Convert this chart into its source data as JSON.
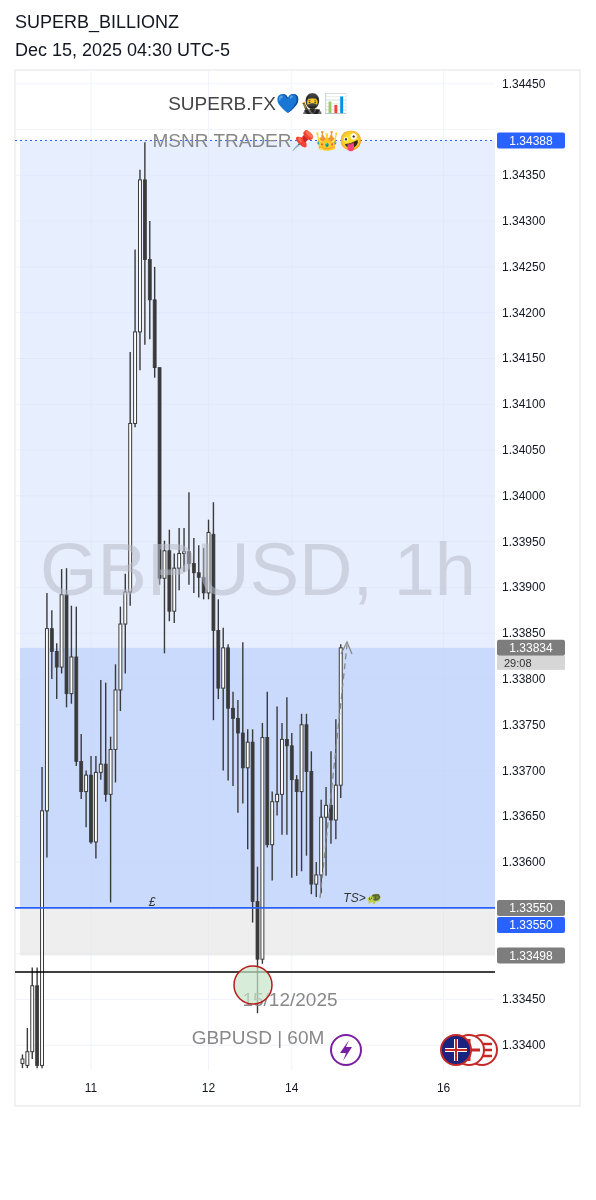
{
  "chart_data": {
    "type": "candlestick",
    "title": "SUPERB_BILLIONZ",
    "subtitle": "Dec 15, 2025 04:30 UTC-5",
    "categories": [
      null,
      null,
      null,
      null,
      null,
      null,
      null,
      null,
      null,
      null,
      null,
      null,
      null,
      null,
      "11",
      null,
      null,
      null,
      null,
      null,
      null,
      null,
      null,
      null,
      null,
      null,
      null,
      null,
      null,
      null,
      null,
      null,
      null,
      null,
      null,
      null,
      null,
      null,
      "12",
      null,
      null,
      null,
      null,
      null,
      null,
      null,
      null,
      null,
      null,
      null,
      null,
      null,
      null,
      null,
      null,
      "14",
      null,
      null,
      null,
      null,
      null,
      null,
      null,
      null,
      null,
      null,
      null,
      null,
      null,
      null,
      null,
      null,
      null,
      null,
      null,
      null,
      null,
      null,
      null,
      null,
      null,
      null,
      null,
      null,
      null,
      null,
      "16",
      null,
      null,
      null,
      null,
      null,
      null,
      null,
      null,
      null,
      null
    ],
    "series": [
      {
        "color": "#3a3a3a",
        "ohlc": [
          [
            1.3338,
            1.3339,
            1.33375,
            1.33385
          ],
          [
            1.33378,
            1.33419,
            1.33375,
            1.33393
          ],
          [
            1.33393,
            1.33485,
            1.33385,
            1.33465
          ],
          [
            1.33465,
            1.33485,
            1.33375,
            1.33378
          ],
          [
            1.33378,
            1.33704,
            1.33375,
            1.33656
          ],
          [
            1.33656,
            1.33894,
            1.33605,
            1.33855
          ],
          [
            1.33855,
            1.33875,
            1.338,
            1.3383
          ],
          [
            1.3383,
            1.33839,
            1.33778,
            1.33813
          ],
          [
            1.33813,
            1.3392,
            1.33806,
            1.33892
          ],
          [
            1.33892,
            1.33921,
            1.33769,
            1.33784
          ],
          [
            1.33784,
            1.3388,
            1.33773,
            1.33824
          ],
          [
            1.33824,
            1.33879,
            1.33705,
            1.3371
          ],
          [
            1.3371,
            1.3374,
            1.33669,
            1.33677
          ],
          [
            1.33677,
            1.337,
            1.33638,
            1.33695
          ],
          [
            1.33695,
            1.33716,
            1.3362,
            1.33622
          ],
          [
            1.33622,
            1.33716,
            1.33604,
            1.33698
          ],
          [
            1.33698,
            1.33799,
            1.3369,
            1.33707
          ],
          [
            1.33707,
            1.33796,
            1.33666,
            1.33674
          ],
          [
            1.33674,
            1.33737,
            1.33556,
            1.33723
          ],
          [
            1.33723,
            1.33816,
            1.33687,
            1.33788
          ],
          [
            1.33788,
            1.33879,
            1.33765,
            1.3386
          ],
          [
            1.3386,
            1.33915,
            1.33806,
            1.33895
          ],
          [
            1.33895,
            1.34157,
            1.3388,
            1.34079
          ],
          [
            1.34079,
            1.34269,
            1.34075,
            1.34179
          ],
          [
            1.34179,
            1.34356,
            1.34137,
            1.34345
          ],
          [
            1.34345,
            1.34386,
            1.34165,
            1.34258
          ],
          [
            1.34258,
            1.343,
            1.34171,
            1.34214
          ],
          [
            1.34214,
            1.3425,
            1.34129,
            1.3414
          ],
          [
            1.3414,
            1.3414,
            1.33903,
            1.3391
          ],
          [
            1.3391,
            1.33951,
            1.33828,
            1.3394
          ],
          [
            1.3394,
            1.33963,
            1.33863,
            1.33874
          ],
          [
            1.33874,
            1.33937,
            1.33861,
            1.33921
          ],
          [
            1.33921,
            1.33965,
            1.33897,
            1.33937
          ],
          [
            1.33937,
            1.33965,
            1.33917,
            1.33939
          ],
          [
            1.33939,
            1.34004,
            1.33903,
            1.33926
          ],
          [
            1.33926,
            1.33954,
            1.33894,
            1.33916
          ],
          [
            1.33916,
            1.33946,
            1.33889,
            1.33911
          ],
          [
            1.33911,
            1.33943,
            1.33887,
            1.33894
          ],
          [
            1.33894,
            1.33974,
            1.33887,
            1.3396
          ],
          [
            1.33958,
            1.33993,
            1.33755,
            1.33853
          ],
          [
            1.33853,
            1.33887,
            1.33778,
            1.3379
          ],
          [
            1.3379,
            1.33856,
            1.337,
            1.33834
          ],
          [
            1.33834,
            1.33838,
            1.33689,
            1.33768
          ],
          [
            1.33768,
            1.33786,
            1.33683,
            1.33757
          ],
          [
            1.33757,
            1.33777,
            1.33654,
            1.33741
          ],
          [
            1.33741,
            1.3384,
            1.33664,
            1.33703
          ],
          [
            1.33703,
            1.33745,
            1.33614,
            1.33731
          ],
          [
            1.33731,
            1.33745,
            1.33534,
            1.33557
          ],
          [
            1.33557,
            1.33595,
            1.33435,
            1.33494
          ],
          [
            1.33494,
            1.33752,
            1.33489,
            1.33736
          ],
          [
            1.33736,
            1.33786,
            1.33616,
            1.33619
          ],
          [
            1.33619,
            1.33677,
            1.3358,
            1.33666
          ],
          [
            1.33666,
            1.3377,
            1.33651,
            1.33674
          ],
          [
            1.33674,
            1.33752,
            1.3363,
            1.33734
          ],
          [
            1.33734,
            1.3378,
            1.3363,
            1.33727
          ],
          [
            1.33727,
            1.33741,
            1.33583,
            1.3369
          ],
          [
            1.3369,
            1.33695,
            1.33585,
            1.33677
          ],
          [
            1.33677,
            1.33762,
            1.3359,
            1.3375
          ],
          [
            1.3375,
            1.33762,
            1.33607,
            1.33699
          ],
          [
            1.33699,
            1.33721,
            1.33565,
            1.33576
          ],
          [
            1.33576,
            1.336,
            1.33562,
            1.33586
          ],
          [
            1.33586,
            1.33668,
            1.33566,
            1.33649
          ],
          [
            1.33649,
            1.33682,
            1.33585,
            1.33662
          ],
          [
            1.33662,
            1.33721,
            1.3362,
            1.33646
          ],
          [
            1.33646,
            1.33756,
            1.33625,
            1.33684
          ],
          [
            1.33684,
            1.33838,
            1.3367,
            1.33834
          ],
          null,
          null,
          null,
          null,
          null,
          null,
          null,
          null,
          null,
          null,
          null,
          null,
          null,
          null,
          null,
          null,
          null,
          null,
          null,
          null,
          null,
          null,
          null,
          null,
          null,
          null,
          null,
          null,
          null,
          null,
          null
        ]
      }
    ],
    "ylim": [
      1.33373,
      1.34465
    ],
    "yticks": [
      {
        "value": 1.334,
        "label": "1.33400"
      },
      {
        "value": 1.3345,
        "label": "1.33450"
      },
      {
        "value": 1.335,
        "label": null
      },
      {
        "value": 1.3355,
        "label": null
      },
      {
        "value": 1.336,
        "label": "1.33600"
      },
      {
        "value": 1.3365,
        "label": "1.33650"
      },
      {
        "value": 1.337,
        "label": "1.33700"
      },
      {
        "value": 1.3375,
        "label": "1.33750"
      },
      {
        "value": 1.338,
        "label": "1.33800"
      },
      {
        "value": 1.3385,
        "label": "1.33850"
      },
      {
        "value": 1.339,
        "label": "1.33900"
      },
      {
        "value": 1.3395,
        "label": "1.33950"
      },
      {
        "value": 1.34,
        "label": "1.34000"
      },
      {
        "value": 1.3405,
        "label": "1.34050"
      },
      {
        "value": 1.341,
        "label": "1.34100"
      },
      {
        "value": 1.3415,
        "label": "1.34150"
      },
      {
        "value": 1.342,
        "label": "1.34200"
      },
      {
        "value": 1.3425,
        "label": "1.34250"
      },
      {
        "value": 1.343,
        "label": "1.34300"
      },
      {
        "value": 1.3435,
        "label": "1.34350"
      },
      {
        "value": 1.344,
        "label": null
      },
      {
        "value": 1.3445,
        "label": "1.34450"
      }
    ],
    "grid": true,
    "bands": [
      {
        "axis": "y",
        "from": 1.34388,
        "to": 1.3355,
        "color": "#d3e0fd",
        "label": "1.33550"
      },
      {
        "axis": "y",
        "from": 1.3355,
        "to": 1.33834,
        "color": "#b3cafc",
        "label": "1.33834"
      },
      {
        "axis": "y",
        "from": 1.3355,
        "to": 1.33498,
        "color": "#e0e0e0",
        "label": "1.33498"
      }
    ],
    "ref_lines": [
      {
        "axis": "y",
        "value": 1.34388,
        "label": "1.34388",
        "color": "#2962ff",
        "line_style": "dotted"
      },
      {
        "axis": "y",
        "value": 1.3355,
        "label": "1.33550",
        "color": "#2962ff",
        "line_style": "solid"
      },
      {
        "axis": "y",
        "value": 1.3348,
        "color": "#000000",
        "line_style": "solid"
      }
    ],
    "annotations": [
      "SUPERB.FX💙🥷📊",
      "MSNR TRADER📌👑🤪",
      "GBPUSD, 1h",
      "15/12/2025",
      "GBPUSD | 60M",
      "29:08",
      "£",
      "TS>🐢"
    ]
  }
}
